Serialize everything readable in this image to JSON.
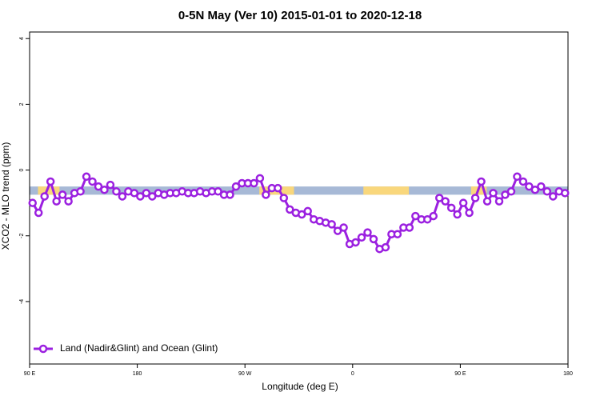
{
  "chart_data": {
    "type": "line",
    "title": "0-5N May (Ver 10)   2015-01-01 to 2020-12-18",
    "x_label": "Longitude (deg E)",
    "y_label": "XCO2 - MLO trend (ppm)",
    "xlim": [
      90,
      540
    ],
    "ylim": [
      -5.9,
      4.2
    ],
    "xticks": [
      {
        "value": 90,
        "label": "90 E"
      },
      {
        "value": 180,
        "label": "180"
      },
      {
        "value": 270,
        "label": "90 W"
      },
      {
        "value": 360,
        "label": "0"
      },
      {
        "value": 450,
        "label": "90 E"
      },
      {
        "value": 540,
        "label": "180"
      }
    ],
    "yticks": [
      -4,
      -2,
      0,
      2,
      4
    ],
    "legend_position": "bottom-left",
    "band": {
      "ymin": -0.75,
      "ymax": -0.5,
      "color": "#a7b9d6",
      "land_color": "#f9d77c",
      "land": [
        [
          97,
          115
        ],
        [
          282,
          311
        ],
        [
          369,
          407
        ],
        [
          459,
          472
        ]
      ]
    },
    "x": [
      92.5,
      97.5,
      102.5,
      107.5,
      112.5,
      117.5,
      122.5,
      127.5,
      132.5,
      137.5,
      142.5,
      147.5,
      152.5,
      157.5,
      162.5,
      167.5,
      172.5,
      177.5,
      182.5,
      187.5,
      192.5,
      197.5,
      202.5,
      207.5,
      212.5,
      217.5,
      222.5,
      227.5,
      232.5,
      237.5,
      242.5,
      247.5,
      252.5,
      257.5,
      262.5,
      267.5,
      272.5,
      277.5,
      282.5,
      287.5,
      292.5,
      297.5,
      302.5,
      307.5,
      312.5,
      317.5,
      322.5,
      327.5,
      332.5,
      337.5,
      342.5,
      347.5,
      352.5,
      357.5,
      362.5,
      367.5,
      372.5,
      377.5,
      382.5,
      387.5,
      392.5,
      397.5,
      402.5,
      407.5,
      412.5,
      417.5,
      422.5,
      427.5,
      432.5,
      437.5,
      442.5,
      447.5,
      452.5,
      457.5,
      462.5,
      467.5,
      472.5,
      477.5,
      482.5,
      487.5,
      492.5,
      497.5,
      502.5,
      507.5,
      512.5,
      517.5,
      522.5,
      527.5,
      532.5,
      537.5
    ],
    "series": [
      {
        "name": "Land (Nadir&Glint) and Ocean (Glint)",
        "color": "#9b20e0",
        "values": [
          -1.0,
          -1.3,
          -0.8,
          -0.35,
          -0.95,
          -0.75,
          -0.95,
          -0.7,
          -0.65,
          -0.2,
          -0.35,
          -0.5,
          -0.6,
          -0.45,
          -0.65,
          -0.8,
          -0.65,
          -0.7,
          -0.8,
          -0.7,
          -0.8,
          -0.7,
          -0.75,
          -0.7,
          -0.7,
          -0.65,
          -0.7,
          -0.7,
          -0.65,
          -0.7,
          -0.65,
          -0.65,
          -0.75,
          -0.75,
          -0.5,
          -0.4,
          -0.4,
          -0.4,
          -0.25,
          -0.75,
          -0.55,
          -0.55,
          -0.85,
          -1.2,
          -1.3,
          -1.35,
          -1.25,
          -1.5,
          -1.55,
          -1.6,
          -1.65,
          -1.85,
          -1.75,
          -2.25,
          -2.2,
          -2.05,
          -1.9,
          -2.1,
          -2.4,
          -2.35,
          -1.95,
          -1.95,
          -1.75,
          -1.75,
          -1.4,
          -1.5,
          -1.5,
          -1.4,
          -0.85,
          -0.95,
          -1.15,
          -1.35,
          -1.0,
          -1.3,
          -0.85,
          -0.35,
          -0.95,
          -0.7,
          -0.95,
          -0.75,
          -0.65,
          -0.2,
          -0.35,
          -0.5,
          -0.6,
          -0.5,
          -0.65,
          -0.8,
          -0.65,
          -0.7
        ]
      }
    ]
  }
}
